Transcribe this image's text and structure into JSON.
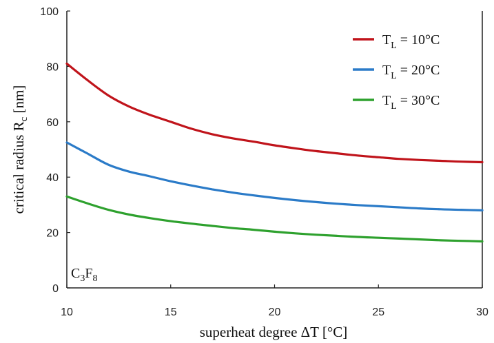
{
  "chart_data": {
    "type": "line",
    "title": "",
    "xlabel": {
      "main": "superheat degree ΔT [°C]"
    },
    "ylabel": {
      "main": "critical radius R",
      "sub": "c",
      "unit": " [nm]"
    },
    "xlim": [
      10,
      30
    ],
    "ylim": [
      0,
      100
    ],
    "x_ticks": [
      10,
      15,
      20,
      25,
      30
    ],
    "y_ticks": [
      0,
      20,
      40,
      60,
      80,
      100
    ],
    "grid": false,
    "legend_position": "top-right",
    "annotation": {
      "base1": "C",
      "sub1": "3",
      "base2": "F",
      "sub2": "8"
    },
    "x": [
      10,
      11,
      12,
      13,
      14,
      15,
      16,
      17,
      18,
      19,
      20,
      21,
      22,
      23,
      24,
      25,
      26,
      27,
      28,
      29,
      30
    ],
    "series": [
      {
        "legend": {
          "prefix": "T",
          "sub": "L",
          "suffix": " = 10°C"
        },
        "color": "#c0141b",
        "values": [
          81,
          75,
          69.5,
          65.5,
          62.5,
          60,
          57.5,
          55.5,
          54,
          52.8,
          51.5,
          50.4,
          49.4,
          48.6,
          47.8,
          47.2,
          46.6,
          46.2,
          45.9,
          45.6,
          45.4
        ]
      },
      {
        "legend": {
          "prefix": "T",
          "sub": "L",
          "suffix": " = 20°C"
        },
        "color": "#2b7bc8",
        "values": [
          52.5,
          48.5,
          44.5,
          42,
          40.3,
          38.5,
          37,
          35.6,
          34.4,
          33.4,
          32.5,
          31.7,
          31.0,
          30.4,
          29.9,
          29.5,
          29.1,
          28.7,
          28.4,
          28.2,
          28.0
        ]
      },
      {
        "legend": {
          "prefix": "T",
          "sub": "L",
          "suffix": " = 30°C"
        },
        "color": "#2ea12e",
        "values": [
          33,
          30.5,
          28.2,
          26.5,
          25.2,
          24.1,
          23.2,
          22.4,
          21.6,
          21.0,
          20.3,
          19.7,
          19.2,
          18.8,
          18.4,
          18.1,
          17.8,
          17.5,
          17.2,
          17.0,
          16.8
        ]
      }
    ]
  }
}
